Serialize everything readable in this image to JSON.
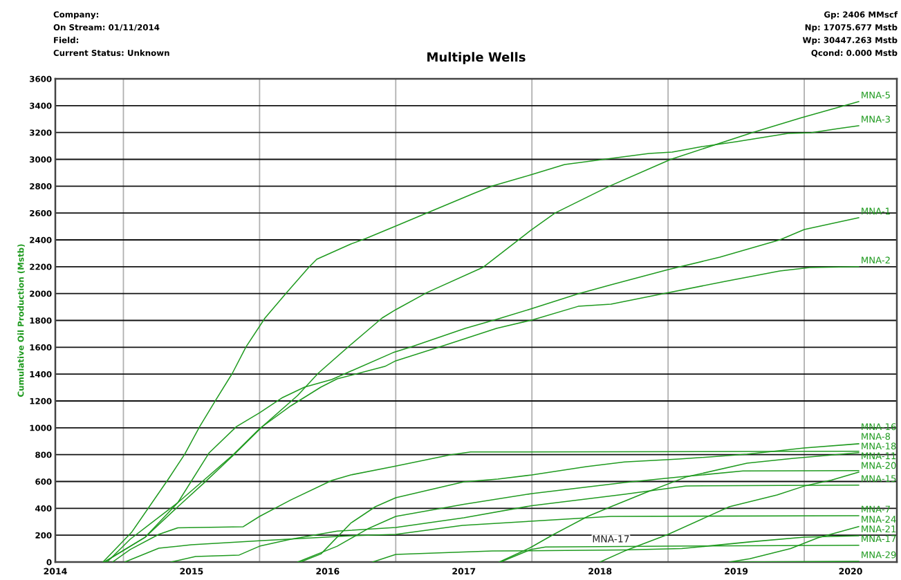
{
  "chart_data": {
    "type": "line",
    "title": "Multiple Wells",
    "ylabel": "Cumulative Oil Production (Mstb)",
    "annotations": [
      "Company:",
      "On Stream: 01/11/2014",
      "Field:",
      "Current Status: Unknown",
      "Gp: 2406 MMscf",
      "Np: 17075.677 Mstb",
      "Wp: 30447.263 Mstb",
      "Qcond: 0.000 Mstb",
      {
        "text": "MNA-17",
        "x": 2018.58,
        "y": 118
      }
    ],
    "xlim": [
      2014.5,
      2020.68
    ],
    "ylim": [
      0,
      3600
    ],
    "xticks": [
      {
        "value": 2015,
        "label": null
      },
      {
        "value": 2016,
        "label": null
      },
      {
        "value": 2017,
        "label": null
      },
      {
        "value": 2018,
        "label": null
      },
      {
        "value": 2019,
        "label": null
      },
      {
        "value": 2020,
        "label": null
      },
      {
        "value": 2014.5,
        "label": "2014"
      },
      {
        "value": 2015.5,
        "label": "2015"
      },
      {
        "value": 2016.5,
        "label": "2016"
      },
      {
        "value": 2017.5,
        "label": "2017"
      },
      {
        "value": 2018.5,
        "label": "2018"
      },
      {
        "value": 2019.5,
        "label": "2019"
      },
      {
        "value": 2020.34,
        "label": "2020"
      }
    ],
    "yticks": [
      0,
      200,
      400,
      600,
      800,
      1000,
      1200,
      1400,
      1600,
      1800,
      2000,
      2200,
      2400,
      2600,
      2800,
      3000,
      3200,
      3400,
      3600
    ],
    "grid": true,
    "legend": false,
    "marker": "none",
    "line_style": "solid",
    "series": [
      {
        "name": "MNA-5",
        "color": "#1f9a1f",
        "x": [
          2014.86,
          2015.16,
          2015.4,
          2015.6,
          2015.8,
          2016.02,
          2016.28,
          2016.43,
          2016.67,
          2016.9,
          2017.0,
          2017.23,
          2017.64,
          2017.99,
          2018.17,
          2018.56,
          2019.02,
          2019.62,
          2019.98,
          2020.4
        ],
        "values": [
          0,
          185,
          412,
          597,
          788,
          1009,
          1241,
          1406,
          1620,
          1818,
          1880,
          2008,
          2195,
          2470,
          2600,
          2796,
          3000,
          3200,
          3310,
          3430
        ]
      },
      {
        "name": "MNA-3",
        "color": "#1f9a1f",
        "x": [
          2014.85,
          2015.06,
          2015.33,
          2015.45,
          2015.56,
          2015.68,
          2015.8,
          2015.9,
          2016.04,
          2016.2,
          2016.36,
          2016.42,
          2016.67,
          2016.78,
          2017.0,
          2017.23,
          2017.57,
          2017.71,
          2017.99,
          2018.24,
          2018.51,
          2018.86,
          2019.03,
          2019.25,
          2019.5,
          2019.88,
          2020.05,
          2020.25,
          2020.4
        ],
        "values": [
          0,
          221,
          618,
          803,
          1009,
          1210,
          1406,
          1602,
          1818,
          2008,
          2194,
          2256,
          2369,
          2410,
          2503,
          2601,
          2745,
          2802,
          2884,
          2961,
          2997,
          3044,
          3054,
          3095,
          3131,
          3193,
          3198,
          3229,
          3250
        ]
      },
      {
        "name": "MNA-1",
        "color": "#1f9a1f",
        "x": [
          2014.88,
          2015.05,
          2015.4,
          2015.63,
          2015.83,
          2016.0,
          2016.17,
          2016.33,
          2016.53,
          2016.98,
          2017.11,
          2017.51,
          2017.74,
          2017.99,
          2018.34,
          2018.58,
          2019.0,
          2019.38,
          2019.82,
          2020.0,
          2020.4
        ],
        "values": [
          0,
          170,
          443,
          814,
          1009,
          1112,
          1226,
          1303,
          1360,
          1560,
          1602,
          1741,
          1808,
          1885,
          1998,
          2065,
          2178,
          2271,
          2400,
          2477,
          2565
        ]
      },
      {
        "name": "MNA-2",
        "color": "#1f9a1f",
        "x": [
          2014.86,
          2015.16,
          2015.4,
          2015.6,
          2015.81,
          2016.0,
          2016.23,
          2016.45,
          2016.57,
          2016.92,
          2017.0,
          2017.32,
          2017.74,
          2018.0,
          2018.34,
          2018.58,
          2018.96,
          2019.42,
          2019.82,
          2020.04,
          2020.4
        ],
        "values": [
          0,
          185,
          443,
          618,
          803,
          994,
          1164,
          1303,
          1365,
          1457,
          1499,
          1602,
          1741,
          1803,
          1905,
          1921,
          1998,
          2091,
          2168,
          2194,
          2200
        ]
      },
      {
        "name": "MNA-16",
        "color": "#1f9a1f",
        "x": [
          2016.3,
          2016.45,
          2016.67,
          2016.85,
          2017.0,
          2017.5,
          2017.75,
          2018.0,
          2018.4,
          2018.68,
          2019.08,
          2019.58,
          2020.0,
          2020.4
        ],
        "values": [
          0,
          60,
          290,
          412,
          479,
          597,
          618,
          649,
          711,
          745,
          767,
          803,
          850,
          881
        ]
      },
      {
        "name": "MNA-8",
        "color": "#1f9a1f",
        "x": [
          2014.92,
          2015.05,
          2015.26,
          2015.4,
          2015.88,
          2016.0,
          2016.23,
          2016.53,
          2016.67,
          2016.98,
          2017.4,
          2017.55,
          2020.4
        ],
        "values": [
          0,
          93,
          206,
          255,
          263,
          340,
          463,
          608,
          649,
          711,
          798,
          820,
          825
        ]
      },
      {
        "name": "MNA-18",
        "color": "#1f9a1f",
        "x": [
          2017.76,
          2017.99,
          2018.16,
          2018.41,
          2018.58,
          2018.83,
          2019.13,
          2019.58,
          2019.92,
          2020.4
        ],
        "values": [
          0,
          108,
          206,
          340,
          412,
          515,
          633,
          736,
          772,
          815
        ]
      },
      {
        "name": "MNA-11",
        "color": "#1f9a1f",
        "x": [
          2016.28,
          2016.57,
          2016.8,
          2017.0,
          2017.5,
          2018.0,
          2018.68,
          2019.08,
          2019.55,
          2020.4
        ],
        "values": [
          0,
          118,
          250,
          340,
          430,
          510,
          592,
          633,
          678,
          681
        ]
      },
      {
        "name": "MNA-20",
        "color": "#1f9a1f",
        "x": [
          2018.5,
          2018.68,
          2019.0,
          2019.45,
          2019.8,
          2020.0,
          2020.2,
          2020.4
        ],
        "values": [
          0,
          82,
          206,
          412,
          500,
          566,
          610,
          670
        ]
      },
      {
        "name": "MNA-15",
        "color": "#1f9a1f",
        "x": [
          2015.35,
          2015.53,
          2015.85,
          2016.0,
          2016.23,
          2016.57,
          2017.0,
          2017.5,
          2018.0,
          2018.68,
          2019.13,
          2020.4
        ],
        "values": [
          0,
          41,
          52,
          118,
          170,
          230,
          257,
          330,
          420,
          505,
          567,
          573
        ]
      },
      {
        "name": "MNA-7",
        "color": "#1f9a1f",
        "x": [
          2015.01,
          2015.26,
          2015.5,
          2016.02,
          2016.67,
          2017.0,
          2017.49,
          2017.99,
          2018.58,
          2020.4
        ],
        "values": [
          0,
          103,
          129,
          160,
          196,
          206,
          273,
          304,
          340,
          345
        ]
      },
      {
        "name": "MNA-24",
        "color": "#1f9a1f",
        "x": [
          2019.45,
          2019.6,
          2019.9,
          2020.1,
          2020.4
        ],
        "values": [
          0,
          25,
          100,
          180,
          264
        ]
      },
      {
        "name": "MNA-21",
        "color": "#1f9a1f",
        "x": [
          2016.83,
          2017.0,
          2017.71,
          2018.68,
          2019.1,
          2019.6,
          2020.0,
          2020.4
        ],
        "values": [
          0,
          57,
          82,
          90,
          100,
          150,
          185,
          196
        ]
      },
      {
        "name": "MNA-17",
        "color": "#1f9a1f",
        "x": [
          2017.77,
          2017.99,
          2018.1,
          2018.5,
          2019.0,
          2020.4
        ],
        "values": [
          0,
          93,
          112,
          115,
          118,
          125
        ]
      },
      {
        "name": "MNA-29",
        "color": "#1f9a1f",
        "x": [
          2019.45,
          2020.4
        ],
        "values": [
          0,
          5
        ]
      }
    ]
  }
}
